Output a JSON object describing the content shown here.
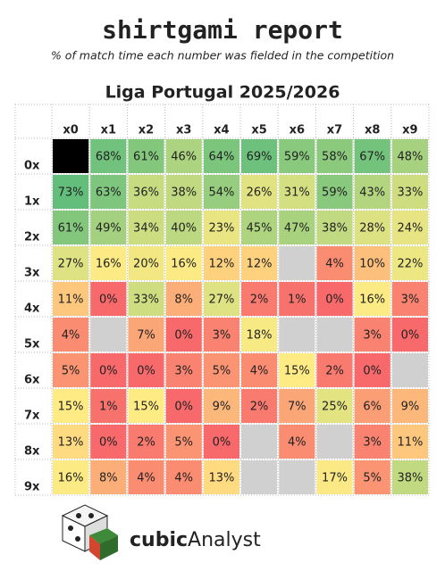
{
  "chart_data": {
    "type": "heatmap",
    "title": "shirtgami report",
    "subtitle": "% of match time each number was fielded in the competition",
    "heading": "Liga Portugal 2025/2026",
    "rows": [
      "0x",
      "1x",
      "2x",
      "3x",
      "4x",
      "5x",
      "6x",
      "7x",
      "8x",
      "9x"
    ],
    "columns": [
      "x0",
      "x1",
      "x2",
      "x3",
      "x4",
      "x5",
      "x6",
      "x7",
      "x8",
      "x9"
    ],
    "values": [
      [
        null,
        68,
        61,
        46,
        64,
        69,
        59,
        58,
        67,
        48
      ],
      [
        73,
        63,
        36,
        38,
        54,
        26,
        31,
        59,
        43,
        33
      ],
      [
        61,
        49,
        34,
        40,
        23,
        45,
        47,
        38,
        28,
        24
      ],
      [
        27,
        16,
        20,
        16,
        12,
        12,
        null,
        4,
        10,
        22
      ],
      [
        11,
        0,
        33,
        8,
        27,
        2,
        1,
        0,
        16,
        3
      ],
      [
        4,
        null,
        7,
        0,
        3,
        18,
        null,
        null,
        3,
        0
      ],
      [
        5,
        0,
        0,
        3,
        5,
        4,
        15,
        2,
        0,
        null
      ],
      [
        15,
        1,
        15,
        0,
        9,
        2,
        7,
        25,
        6,
        9
      ],
      [
        13,
        0,
        2,
        5,
        0,
        null,
        4,
        null,
        3,
        11
      ],
      [
        16,
        8,
        4,
        4,
        13,
        null,
        null,
        17,
        5,
        38
      ]
    ],
    "value_labels": [
      [
        null,
        "68%",
        "61%",
        "46%",
        "64%",
        "69%",
        "59%",
        "58%",
        "67%",
        "48%"
      ],
      [
        "73%",
        "63%",
        "36%",
        "38%",
        "54%",
        "26%",
        "31%",
        "59%",
        "43%",
        "33%"
      ],
      [
        "61%",
        "49%",
        "34%",
        "40%",
        "23%",
        "45%",
        "47%",
        "38%",
        "28%",
        "24%"
      ],
      [
        "27%",
        "16%",
        "20%",
        "16%",
        "12%",
        "12%",
        null,
        "4%",
        "10%",
        "22%"
      ],
      [
        "11%",
        "0%",
        "33%",
        "8%",
        "27%",
        "2%",
        "1%",
        "0%",
        "16%",
        "3%"
      ],
      [
        "4%",
        null,
        "7%",
        "0%",
        "3%",
        "18%",
        null,
        null,
        "3%",
        "0%"
      ],
      [
        "5%",
        "0%",
        "0%",
        "3%",
        "5%",
        "4%",
        "15%",
        "2%",
        "0%",
        null
      ],
      [
        "15%",
        "1%",
        "15%",
        "0%",
        "9%",
        "2%",
        "7%",
        "25%",
        "6%",
        "9%"
      ],
      [
        "13%",
        "0%",
        "2%",
        "5%",
        "0%",
        null,
        "4%",
        null,
        "3%",
        "11%"
      ],
      [
        "16%",
        "8%",
        "4%",
        "4%",
        "13%",
        null,
        null,
        "17%",
        "5%",
        "38%"
      ]
    ],
    "color_scale": [
      "#f8696b",
      "#ffeb84",
      "#63be7b"
    ],
    "null_color": "#d0d0d0",
    "masked": [
      [
        0,
        0
      ]
    ],
    "mask_color": "#000000"
  },
  "footer": {
    "brand_bold": "cubic",
    "brand_regular": "Analyst"
  }
}
